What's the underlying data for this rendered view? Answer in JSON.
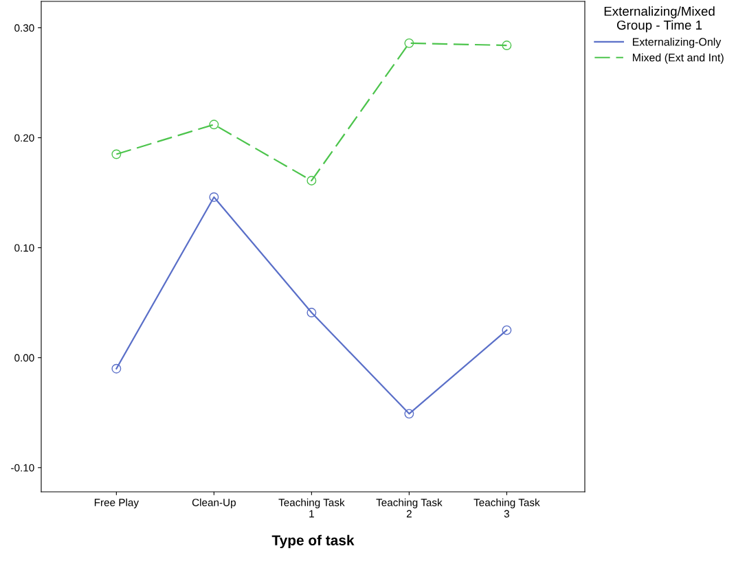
{
  "chart_data": {
    "type": "line",
    "xlabel": "Type of task",
    "legend_title": "Externalizing/Mixed\nGroup - Time 1",
    "categories": [
      "Free Play",
      "Clean-Up",
      "Teaching Task\n1",
      "Teaching Task\n2",
      "Teaching Task\n3"
    ],
    "series": [
      {
        "name": "Externalizing-Only",
        "color": "#5a6fc8",
        "line_style": "solid",
        "values": [
          -0.01,
          0.146,
          0.041,
          -0.051,
          0.025
        ]
      },
      {
        "name": "Mixed (Ext and Int)",
        "color": "#4cc44c",
        "line_style": "dashed",
        "values": [
          0.185,
          0.212,
          0.161,
          0.286,
          0.284
        ]
      }
    ],
    "ylim": [
      -0.122,
      0.324
    ],
    "yticks": [
      {
        "value": -0.1,
        "label": "-0.10"
      },
      {
        "value": 0.0,
        "label": "0.00"
      },
      {
        "value": 0.1,
        "label": "0.10"
      },
      {
        "value": 0.2,
        "label": "0.20"
      },
      {
        "value": 0.3,
        "label": "0.30"
      }
    ],
    "marker": "circle",
    "legend": "top right",
    "grid": false
  }
}
